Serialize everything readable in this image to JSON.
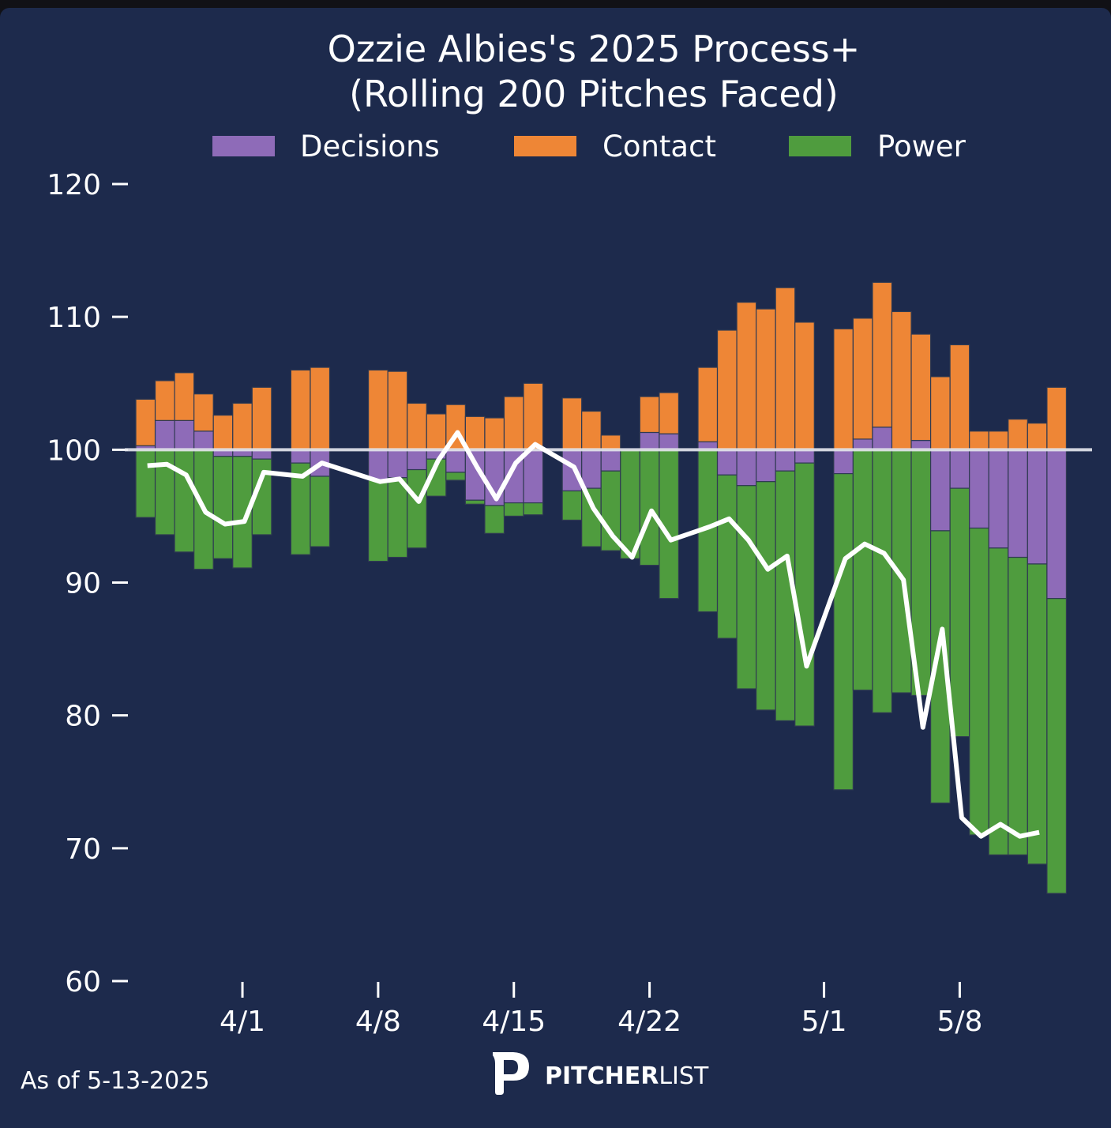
{
  "chart_data": {
    "type": "bar",
    "title": "Ozzie Albies's 2025 Process+",
    "subtitle": "(Rolling 200 Pitches Faced)",
    "xlabel": "",
    "ylabel": "",
    "ylim": [
      60,
      120
    ],
    "yticks": [
      60,
      70,
      80,
      90,
      100,
      110,
      120
    ],
    "baseline": 100,
    "x_ticks": [
      {
        "label": "4/1",
        "day": 5
      },
      {
        "label": "4/8",
        "day": 12
      },
      {
        "label": "4/15",
        "day": 19
      },
      {
        "label": "4/22",
        "day": 26
      },
      {
        "label": "5/1",
        "day": 35
      },
      {
        "label": "5/8",
        "day": 42
      }
    ],
    "x_range_days": [
      -0.5,
      48.5
    ],
    "legend": {
      "placement": "top",
      "entries": [
        {
          "name": "Decisions",
          "color": "#8e6bb8"
        },
        {
          "name": "Contact",
          "color": "#ee8636"
        },
        {
          "name": "Power",
          "color": "#4f9c3e"
        }
      ]
    },
    "line_series_name": "Process+",
    "line_color": "#ffffff",
    "bars": [
      {
        "date": "3/27",
        "day": 0,
        "decisions": 0.3,
        "contact": 3.5,
        "power": -5.1,
        "process": 98.8
      },
      {
        "date": "3/28",
        "day": 1,
        "decisions": 2.2,
        "contact": 3.0,
        "power": -6.4,
        "process": 98.9
      },
      {
        "date": "3/29",
        "day": 2,
        "decisions": 2.2,
        "contact": 3.6,
        "power": -7.7,
        "process": 98.1
      },
      {
        "date": "3/30",
        "day": 3,
        "decisions": 1.4,
        "contact": 2.8,
        "power": -9.0,
        "process": 95.3
      },
      {
        "date": "3/31",
        "day": 4,
        "decisions": -0.5,
        "contact": 2.6,
        "power": -7.7,
        "process": 94.4
      },
      {
        "date": "4/1",
        "day": 5,
        "decisions": -0.5,
        "contact": 3.5,
        "power": -8.4,
        "process": 94.6
      },
      {
        "date": "4/2",
        "day": 6,
        "decisions": -0.7,
        "contact": 4.7,
        "power": -5.7,
        "process": 98.3
      },
      {
        "date": "4/4",
        "day": 8,
        "decisions": -1.0,
        "contact": 6.0,
        "power": -6.9,
        "process": 98.0
      },
      {
        "date": "4/5",
        "day": 9,
        "decisions": -2.0,
        "contact": 6.2,
        "power": -5.3,
        "process": 99.0
      },
      {
        "date": "4/8",
        "day": 12,
        "decisions": -2.3,
        "contact": 6.0,
        "power": -6.1,
        "process": 97.6
      },
      {
        "date": "4/9",
        "day": 13,
        "decisions": -2.1,
        "contact": 5.9,
        "power": -6.0,
        "process": 97.8
      },
      {
        "date": "4/10",
        "day": 14,
        "decisions": -1.5,
        "contact": 3.5,
        "power": -5.9,
        "process": 96.1
      },
      {
        "date": "4/11",
        "day": 15,
        "decisions": -0.7,
        "contact": 2.7,
        "power": -2.8,
        "process": 99.2
      },
      {
        "date": "4/12",
        "day": 16,
        "decisions": -1.7,
        "contact": 3.4,
        "power": -0.6,
        "process": 101.3
      },
      {
        "date": "4/13",
        "day": 17,
        "decisions": -3.8,
        "contact": 2.5,
        "power": -0.3,
        "process": 98.7
      },
      {
        "date": "4/14",
        "day": 18,
        "decisions": -4.2,
        "contact": 2.4,
        "power": -2.1,
        "process": 96.3
      },
      {
        "date": "4/15",
        "day": 19,
        "decisions": -4.0,
        "contact": 4.0,
        "power": -1.0,
        "process": 99.0
      },
      {
        "date": "4/16",
        "day": 20,
        "decisions": -4.0,
        "contact": 5.0,
        "power": -0.9,
        "process": 100.4
      },
      {
        "date": "4/18",
        "day": 22,
        "decisions": -3.1,
        "contact": 3.9,
        "power": -2.2,
        "process": 98.7
      },
      {
        "date": "4/19",
        "day": 23,
        "decisions": -2.9,
        "contact": 2.9,
        "power": -4.4,
        "process": 95.6
      },
      {
        "date": "4/20",
        "day": 24,
        "decisions": -1.6,
        "contact": 1.1,
        "power": -6.0,
        "process": 93.5
      },
      {
        "date": "4/21",
        "day": 25,
        "decisions": 0.0,
        "contact": 0.0,
        "power": -8.2,
        "process": 91.9
      },
      {
        "date": "4/22",
        "day": 26,
        "decisions": 1.3,
        "contact": 2.7,
        "power": -8.7,
        "process": 95.4
      },
      {
        "date": "4/23",
        "day": 27,
        "decisions": 1.2,
        "contact": 3.1,
        "power": -11.2,
        "process": 93.2
      },
      {
        "date": "4/25",
        "day": 29,
        "decisions": 0.6,
        "contact": 5.6,
        "power": -12.2,
        "process": 94.2
      },
      {
        "date": "4/26",
        "day": 30,
        "decisions": -1.9,
        "contact": 9.0,
        "power": -12.3,
        "process": 94.8
      },
      {
        "date": "4/27",
        "day": 31,
        "decisions": -2.7,
        "contact": 11.1,
        "power": -15.3,
        "process": 93.2
      },
      {
        "date": "4/28",
        "day": 32,
        "decisions": -2.4,
        "contact": 10.6,
        "power": -17.2,
        "process": 91.0
      },
      {
        "date": "4/29",
        "day": 33,
        "decisions": -1.6,
        "contact": 12.2,
        "power": -18.8,
        "process": 92.0
      },
      {
        "date": "4/30",
        "day": 34,
        "decisions": -1.0,
        "contact": 9.6,
        "power": -19.8,
        "process": 83.7
      },
      {
        "date": "5/2",
        "day": 36,
        "decisions": -1.8,
        "contact": 9.1,
        "power": -23.8,
        "process": 91.8
      },
      {
        "date": "5/3",
        "day": 37,
        "decisions": 0.8,
        "contact": 9.1,
        "power": -18.1,
        "process": 92.9
      },
      {
        "date": "5/4",
        "day": 38,
        "decisions": 1.7,
        "contact": 10.9,
        "power": -19.8,
        "process": 92.2
      },
      {
        "date": "5/5",
        "day": 39,
        "decisions": 0.0,
        "contact": 10.4,
        "power": -18.3,
        "process": 90.2
      },
      {
        "date": "5/6",
        "day": 40,
        "decisions": 0.7,
        "contact": 8.0,
        "power": -18.5,
        "process": 79.1
      },
      {
        "date": "5/7",
        "day": 41,
        "decisions": -6.1,
        "contact": 5.5,
        "power": -20.5,
        "process": 86.5
      },
      {
        "date": "5/8",
        "day": 42,
        "decisions": -2.9,
        "contact": 7.9,
        "power": -18.7,
        "process": 72.3
      },
      {
        "date": "5/9",
        "day": 43,
        "decisions": -5.9,
        "contact": 1.4,
        "power": -23.1,
        "process": 70.9
      },
      {
        "date": "5/10",
        "day": 44,
        "decisions": -7.4,
        "contact": 1.4,
        "power": -23.1,
        "process": 71.8
      },
      {
        "date": "5/11",
        "day": 45,
        "decisions": -8.1,
        "contact": 2.3,
        "power": -22.4,
        "process": 70.9
      },
      {
        "date": "5/12",
        "day": 46,
        "decisions": -8.6,
        "contact": 2.0,
        "power": -22.6,
        "process": 71.2
      },
      {
        "date": "5/13",
        "day": 47,
        "decisions": -11.2,
        "contact": 4.7,
        "power": -22.2,
        "process": null
      }
    ]
  },
  "footer": {
    "as_of": "As of 5-13-2025",
    "brand_bold": "PITCHER",
    "brand_light": "LIST"
  }
}
